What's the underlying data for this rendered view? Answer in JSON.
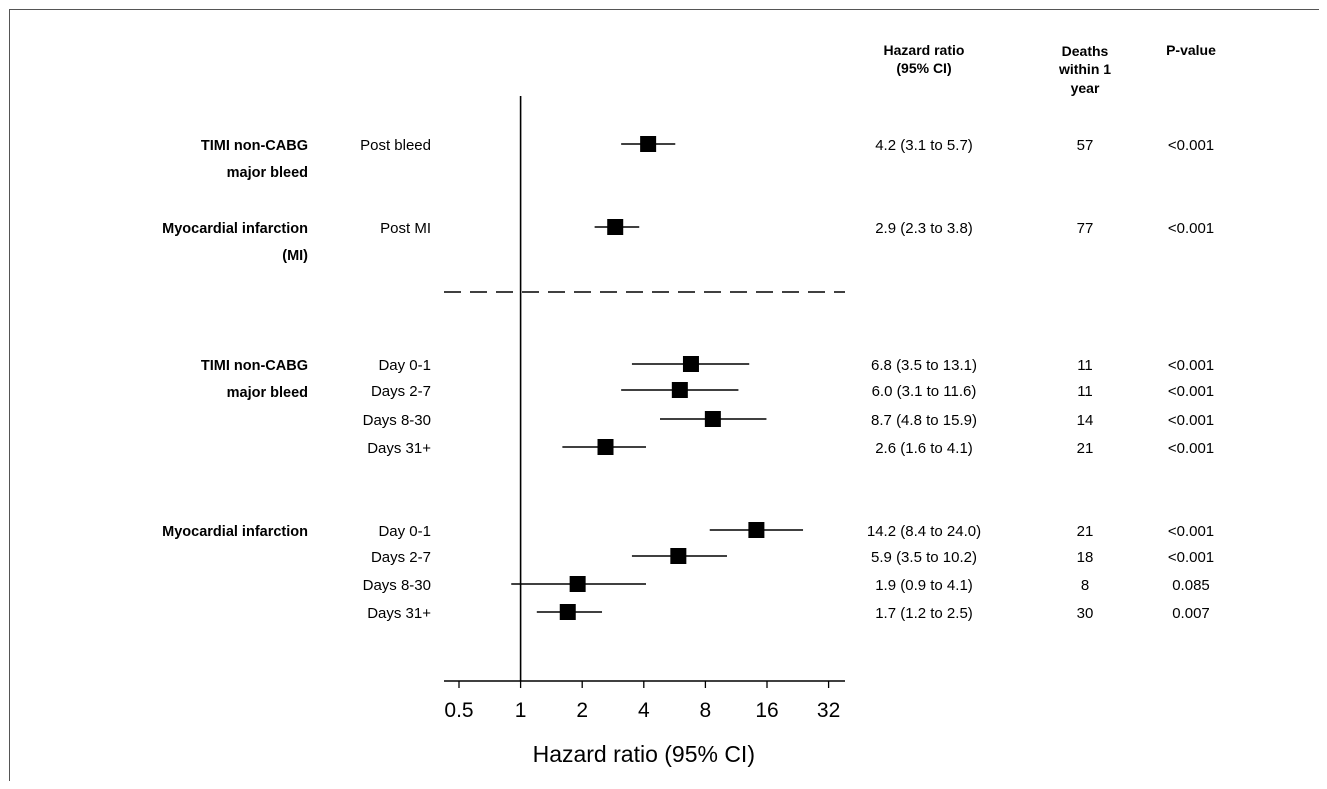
{
  "headers": {
    "hr": [
      "Hazard ratio",
      "(95% CI)"
    ],
    "deaths": [
      "Deaths",
      "within 1",
      "year"
    ],
    "pvalue": [
      "P-value"
    ]
  },
  "groups": [
    {
      "lines": [
        "TIMI non-CABG",
        "major bleed"
      ]
    },
    {
      "lines": [
        "Myocardial infarction",
        "(MI)"
      ]
    },
    {
      "lines": [
        "TIMI non-CABG",
        "major bleed"
      ]
    },
    {
      "lines": [
        "Myocardial infarction"
      ]
    }
  ],
  "chart_data": {
    "type": "forest",
    "xscale": "log2",
    "xlim": [
      0.4,
      36
    ],
    "xticks": [
      0.5,
      1,
      2,
      4,
      8,
      16,
      32
    ],
    "xtick_labels": [
      "0.5",
      "1",
      "2",
      "4",
      "8",
      "16",
      "32"
    ],
    "reference_line": 1,
    "xlabel": "Hazard ratio (95% CI)",
    "rows": [
      {
        "group": "TIMI non-CABG major bleed",
        "label": "Post bleed",
        "hr": 4.2,
        "lo": 3.1,
        "hi": 5.7,
        "ci_text": "4.2 (3.1 to 5.7)",
        "deaths": "57",
        "p": "<0.001"
      },
      {
        "group": "Myocardial infarction (MI)",
        "label": "Post MI",
        "hr": 2.9,
        "lo": 2.3,
        "hi": 3.8,
        "ci_text": "2.9 (2.3 to 3.8)",
        "deaths": "77",
        "p": "<0.001"
      },
      {
        "group": "TIMI non-CABG major bleed",
        "label": "Day 0-1",
        "hr": 6.8,
        "lo": 3.5,
        "hi": 13.1,
        "ci_text": "6.8 (3.5 to 13.1)",
        "deaths": "11",
        "p": "<0.001"
      },
      {
        "group": "TIMI non-CABG major bleed",
        "label": "Days 2-7",
        "hr": 6.0,
        "lo": 3.1,
        "hi": 11.6,
        "ci_text": "6.0 (3.1 to 11.6)",
        "deaths": "11",
        "p": "<0.001"
      },
      {
        "group": "TIMI non-CABG major bleed",
        "label": "Days 8-30",
        "hr": 8.7,
        "lo": 4.8,
        "hi": 15.9,
        "ci_text": "8.7 (4.8 to 15.9)",
        "deaths": "14",
        "p": "<0.001"
      },
      {
        "group": "TIMI non-CABG major bleed",
        "label": "Days 31+",
        "hr": 2.6,
        "lo": 1.6,
        "hi": 4.1,
        "ci_text": "2.6 (1.6 to 4.1)",
        "deaths": "21",
        "p": "<0.001"
      },
      {
        "group": "Myocardial infarction",
        "label": "Day 0-1",
        "hr": 14.2,
        "lo": 8.4,
        "hi": 24.0,
        "ci_text": "14.2 (8.4 to 24.0)",
        "deaths": "21",
        "p": "<0.001"
      },
      {
        "group": "Myocardial infarction",
        "label": "Days 2-7",
        "hr": 5.9,
        "lo": 3.5,
        "hi": 10.2,
        "ci_text": "5.9 (3.5 to 10.2)",
        "deaths": "18",
        "p": "<0.001"
      },
      {
        "group": "Myocardial infarction",
        "label": "Days 8-30",
        "hr": 1.9,
        "lo": 0.9,
        "hi": 4.1,
        "ci_text": "1.9 (0.9 to 4.1)",
        "deaths": "8",
        "p": "0.085"
      },
      {
        "group": "Myocardial infarction",
        "label": "Days 31+",
        "hr": 1.7,
        "lo": 1.2,
        "hi": 2.5,
        "ci_text": "1.7 (1.2 to 2.5)",
        "deaths": "30",
        "p": "0.007"
      }
    ]
  }
}
